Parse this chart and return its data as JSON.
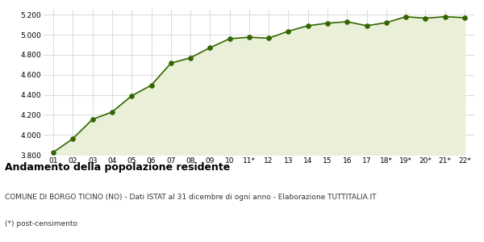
{
  "x_labels": [
    "01",
    "02",
    "03",
    "04",
    "05",
    "06",
    "07",
    "08",
    "09",
    "10",
    "11*",
    "12",
    "13",
    "14",
    "15",
    "16",
    "17",
    "18*",
    "19*",
    "20*",
    "21*",
    "22*"
  ],
  "values": [
    3826,
    3963,
    4155,
    4228,
    4390,
    4495,
    4715,
    4770,
    4870,
    4960,
    4975,
    4965,
    5035,
    5090,
    5115,
    5130,
    5090,
    5120,
    5180,
    5165,
    5180,
    5170
  ],
  "line_color": "#336600",
  "fill_color": "#eaf0d8",
  "marker_color": "#336600",
  "bg_color": "#ffffff",
  "grid_color": "#cccccc",
  "ylim": [
    3800,
    5250
  ],
  "yticks": [
    3800,
    4000,
    4200,
    4400,
    4600,
    4800,
    5000,
    5200
  ],
  "title": "Andamento della popolazione residente",
  "subtitle": "COMUNE DI BORGO TICINO (NO) - Dati ISTAT al 31 dicembre di ogni anno - Elaborazione TUTTITALIA.IT",
  "footnote": "(*) post-censimento",
  "title_fontsize": 9,
  "subtitle_fontsize": 6.5,
  "footnote_fontsize": 6.5,
  "tick_fontsize": 6.5
}
